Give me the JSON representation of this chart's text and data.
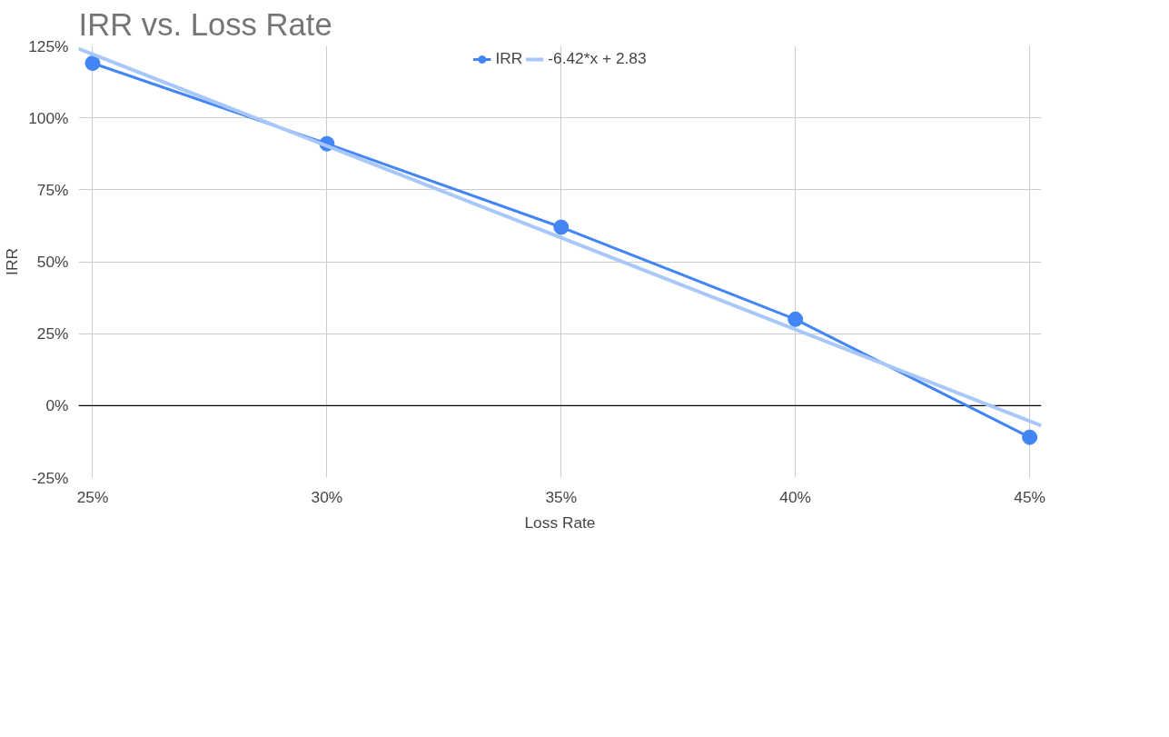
{
  "chart_data": {
    "type": "line",
    "title": "IRR vs. Loss Rate",
    "xlabel": "Loss Rate",
    "ylabel": "IRR",
    "x": [
      25,
      30,
      35,
      40,
      45
    ],
    "series": [
      {
        "name": "IRR",
        "color": "#4285f4",
        "values": [
          119,
          91,
          62,
          30,
          -11
        ],
        "marker": "circle"
      },
      {
        "name": "-6.42*x + 2.83",
        "color": "#a8c7fa",
        "type": "line",
        "x": [
          24.7,
          45.25
        ],
        "values": [
          124,
          -7
        ],
        "marker": "none"
      }
    ],
    "xlim": [
      24.7,
      45.25
    ],
    "ylim": [
      -25,
      125
    ],
    "xticks": [
      {
        "value": 25,
        "label": "25%"
      },
      {
        "value": 30,
        "label": "30%"
      },
      {
        "value": 35,
        "label": "35%"
      },
      {
        "value": 40,
        "label": "40%"
      },
      {
        "value": 45,
        "label": "45%"
      }
    ],
    "yticks": [
      {
        "value": -25,
        "label": "-25%"
      },
      {
        "value": 0,
        "label": "0%"
      },
      {
        "value": 25,
        "label": "25%"
      },
      {
        "value": 50,
        "label": "50%"
      },
      {
        "value": 75,
        "label": "75%"
      },
      {
        "value": 100,
        "label": "100%"
      },
      {
        "value": 125,
        "label": "125%"
      }
    ],
    "ref_lines": [
      {
        "axis": "y",
        "value": 0,
        "color": "#000000"
      }
    ],
    "grid": true,
    "legend": "top",
    "line_style": "solid"
  }
}
